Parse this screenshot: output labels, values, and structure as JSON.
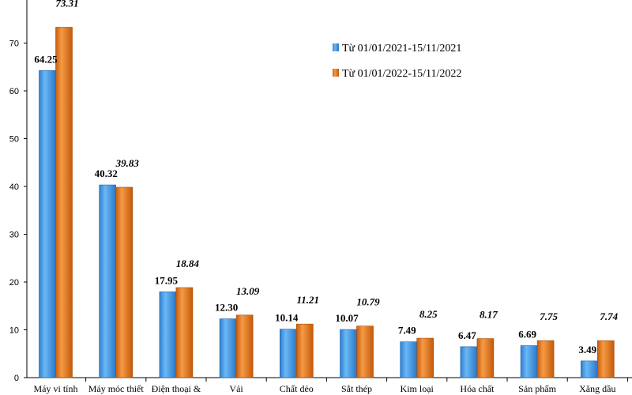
{
  "chart_data": {
    "type": "bar",
    "categories": [
      "Máy vi tính",
      "Máy móc thiết",
      "Điện thoại &",
      "Vải",
      "Chất dẻo",
      "Sắt thép",
      "Kim loại",
      "Hóa chất",
      "Sản phẩm",
      "Xăng dầu"
    ],
    "series": [
      {
        "name": "Từ 01/01/2021-15/11/2021",
        "color": "#4a9ee8",
        "values": [
          64.25,
          40.32,
          17.95,
          12.3,
          10.14,
          10.07,
          7.49,
          6.47,
          6.69,
          3.49
        ],
        "labels": [
          "64.25",
          "40.32",
          "17.95",
          "12.30",
          "10.14",
          "10.07",
          "7.49",
          "6.47",
          "6.69",
          "3.49"
        ]
      },
      {
        "name": "Từ 01/01/2022-15/11/2022",
        "color": "#e8761e",
        "values": [
          73.31,
          39.83,
          18.84,
          13.09,
          11.21,
          10.79,
          8.25,
          8.17,
          7.75,
          7.74
        ],
        "labels": [
          "73.31",
          "39.83",
          "18.84",
          "13.09",
          "11.21",
          "10.79",
          "8.25",
          "8.17",
          "7.75",
          "7.74"
        ]
      }
    ],
    "yticks": [
      "0",
      "10",
      "20",
      "30",
      "40",
      "50",
      "60",
      "70"
    ],
    "ylim": [
      0,
      80
    ],
    "grid": false,
    "legend_position": "top-right",
    "title": "",
    "xlabel": "",
    "ylabel": ""
  }
}
